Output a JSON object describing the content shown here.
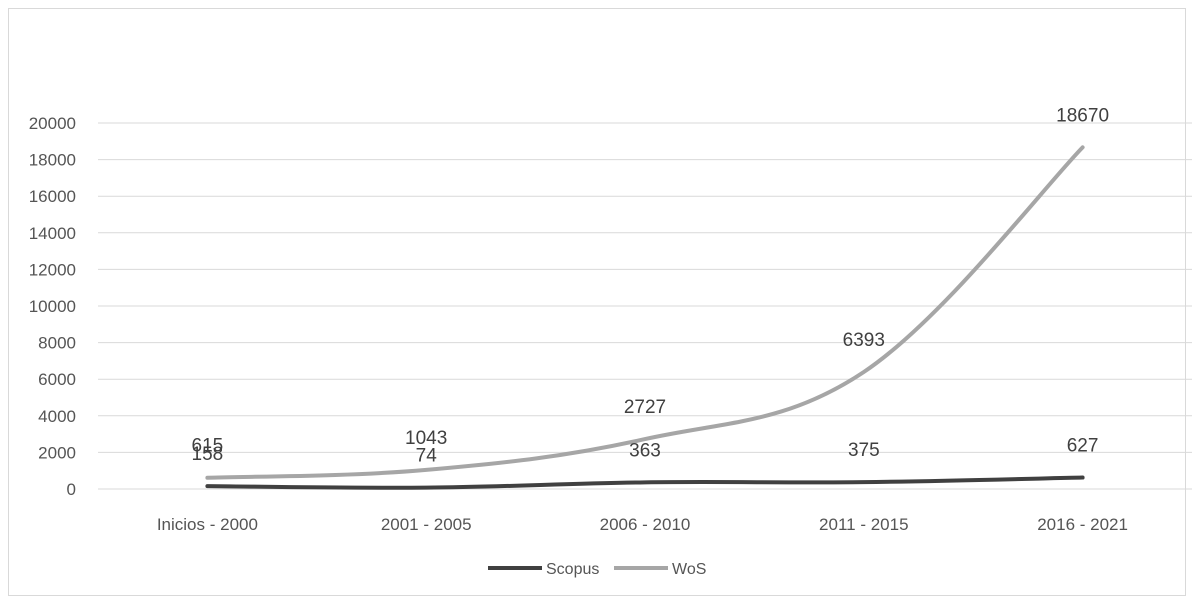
{
  "chart_data": {
    "type": "line",
    "categories": [
      "Inicios - 2000",
      "2001 - 2005",
      "2006 - 2010",
      "2011 - 2015",
      "2016 - 2021"
    ],
    "series": [
      {
        "name": "Scopus",
        "values": [
          158,
          74,
          363,
          375,
          627
        ],
        "color": "#404040"
      },
      {
        "name": "WoS",
        "values": [
          615,
          1043,
          2727,
          6393,
          18670
        ],
        "color": "#a6a6a6"
      }
    ],
    "y_ticks": [
      "0",
      "2000",
      "4000",
      "6000",
      "8000",
      "10000",
      "12000",
      "14000",
      "16000",
      "18000",
      "20000"
    ],
    "ylim": [
      0,
      20000
    ],
    "grid": true,
    "legend_position": "bottom",
    "title": "",
    "xlabel": "",
    "ylabel": ""
  }
}
